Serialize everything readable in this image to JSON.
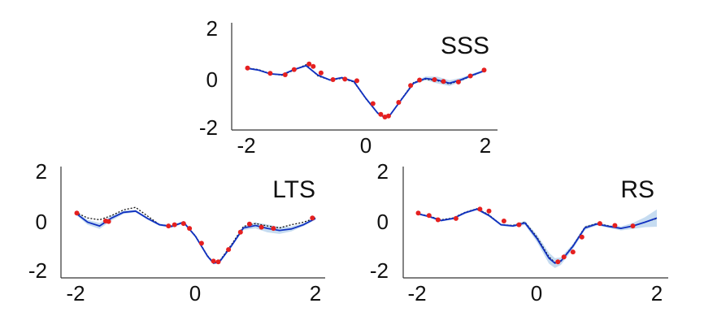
{
  "chart_data": [
    {
      "type": "line",
      "title": "SSS",
      "xlim": [
        -2,
        2
      ],
      "ylim": [
        -2,
        2
      ],
      "xticks": [
        "-2",
        "0",
        "2"
      ],
      "yticks": [
        "2",
        "0",
        "-2"
      ],
      "x": [
        -2.0,
        -1.8,
        -1.6,
        -1.4,
        -1.2,
        -1.0,
        -0.8,
        -0.6,
        -0.4,
        -0.2,
        0.0,
        0.2,
        0.3,
        0.4,
        0.6,
        0.8,
        1.0,
        1.2,
        1.4,
        1.6,
        1.8,
        2.0
      ],
      "series": [
        {
          "role": "true_function",
          "values": [
            0.38,
            0.32,
            0.15,
            0.08,
            0.3,
            0.52,
            0.05,
            -0.12,
            -0.05,
            -0.2,
            -0.9,
            -1.5,
            -1.65,
            -1.6,
            -0.9,
            -0.22,
            -0.08,
            -0.15,
            -0.28,
            -0.12,
            0.08,
            0.3
          ]
        },
        {
          "role": "estimate",
          "values": [
            0.38,
            0.3,
            0.14,
            0.1,
            0.32,
            0.48,
            0.08,
            -0.12,
            -0.02,
            -0.18,
            -0.88,
            -1.5,
            -1.65,
            -1.6,
            -0.92,
            -0.25,
            -0.05,
            -0.12,
            -0.25,
            -0.1,
            0.1,
            0.28
          ]
        }
      ],
      "band_halfwidth": [
        0.04,
        0.04,
        0.04,
        0.04,
        0.04,
        0.04,
        0.04,
        0.04,
        0.04,
        0.04,
        0.05,
        0.05,
        0.05,
        0.05,
        0.05,
        0.05,
        0.08,
        0.14,
        0.12,
        0.08,
        0.06,
        0.05
      ],
      "points": {
        "x": [
          -1.98,
          -1.6,
          -1.35,
          -1.2,
          -0.95,
          -0.88,
          -0.75,
          -0.55,
          -0.35,
          -0.15,
          0.12,
          0.25,
          0.32,
          0.38,
          0.55,
          0.75,
          0.9,
          1.15,
          1.3,
          1.55,
          1.75,
          1.98
        ],
        "y": [
          0.38,
          0.16,
          0.1,
          0.32,
          0.55,
          0.45,
          0.18,
          -0.1,
          -0.08,
          -0.15,
          -1.1,
          -1.55,
          -1.66,
          -1.62,
          -1.05,
          -0.35,
          -0.12,
          -0.1,
          -0.18,
          -0.2,
          0.05,
          0.3
        ]
      }
    },
    {
      "type": "line",
      "title": "LTS",
      "xlim": [
        -2,
        2
      ],
      "ylim": [
        -2,
        2
      ],
      "xticks": [
        "-2",
        "0",
        "2"
      ],
      "yticks": [
        "2",
        "0",
        "-2"
      ],
      "x": [
        -2.0,
        -1.8,
        -1.6,
        -1.4,
        -1.2,
        -1.0,
        -0.8,
        -0.6,
        -0.4,
        -0.2,
        0.0,
        0.2,
        0.3,
        0.4,
        0.6,
        0.8,
        1.0,
        1.2,
        1.4,
        1.6,
        1.8,
        2.0
      ],
      "series": [
        {
          "role": "true_function",
          "values": [
            0.35,
            0.12,
            0.05,
            0.22,
            0.45,
            0.55,
            0.2,
            -0.15,
            -0.2,
            -0.05,
            -0.6,
            -1.4,
            -1.68,
            -1.62,
            -0.95,
            -0.22,
            -0.1,
            -0.2,
            -0.28,
            -0.15,
            -0.05,
            0.12
          ]
        },
        {
          "role": "estimate",
          "values": [
            0.32,
            -0.05,
            -0.2,
            0.12,
            0.35,
            0.4,
            0.1,
            -0.15,
            -0.22,
            -0.05,
            -0.62,
            -1.42,
            -1.7,
            -1.65,
            -1.0,
            -0.28,
            -0.18,
            -0.3,
            -0.38,
            -0.32,
            -0.15,
            0.1
          ]
        }
      ],
      "band_halfwidth": [
        0.06,
        0.1,
        0.12,
        0.1,
        0.06,
        0.05,
        0.05,
        0.05,
        0.05,
        0.05,
        0.05,
        0.05,
        0.05,
        0.05,
        0.05,
        0.08,
        0.12,
        0.16,
        0.14,
        0.1,
        0.06,
        0.05
      ],
      "points": {
        "x": [
          -1.98,
          -1.5,
          -1.45,
          -0.45,
          -0.35,
          -0.2,
          -0.1,
          0.1,
          0.3,
          0.38,
          0.55,
          0.75,
          0.9,
          1.1,
          1.3,
          1.95
        ],
        "y": [
          0.32,
          0.0,
          -0.02,
          -0.2,
          -0.15,
          -0.1,
          -0.3,
          -0.9,
          -1.62,
          -1.65,
          -1.15,
          -0.45,
          -0.12,
          -0.25,
          -0.3,
          0.12
        ]
      }
    },
    {
      "type": "line",
      "title": "RS",
      "xlim": [
        -2,
        2
      ],
      "ylim": [
        -2,
        2
      ],
      "xticks": [
        "-2",
        "0",
        "2"
      ],
      "yticks": [
        "2",
        "0",
        "-2"
      ],
      "x": [
        -2.0,
        -1.8,
        -1.6,
        -1.4,
        -1.2,
        -1.0,
        -0.8,
        -0.6,
        -0.4,
        -0.2,
        0.0,
        0.2,
        0.3,
        0.4,
        0.6,
        0.8,
        1.0,
        1.2,
        1.4,
        1.6,
        1.8,
        2.0
      ],
      "series": [
        {
          "role": "true_function",
          "values": [
            0.3,
            0.2,
            0.05,
            0.12,
            0.35,
            0.5,
            0.25,
            -0.15,
            -0.18,
            -0.05,
            -0.65,
            -1.45,
            -1.68,
            -1.6,
            -1.0,
            -0.25,
            -0.1,
            -0.2,
            -0.3,
            -0.2,
            -0.05,
            0.1
          ]
        },
        {
          "role": "estimate",
          "values": [
            0.3,
            0.18,
            0.02,
            0.1,
            0.33,
            0.48,
            0.22,
            -0.15,
            -0.2,
            -0.08,
            -0.7,
            -1.5,
            -1.7,
            -1.62,
            -1.02,
            -0.28,
            -0.12,
            -0.22,
            -0.3,
            -0.2,
            -0.05,
            0.12
          ]
        }
      ],
      "band_halfwidth": [
        0.04,
        0.04,
        0.04,
        0.04,
        0.04,
        0.04,
        0.05,
        0.05,
        0.05,
        0.08,
        0.15,
        0.22,
        0.2,
        0.15,
        0.1,
        0.08,
        0.06,
        0.06,
        0.08,
        0.12,
        0.2,
        0.35
      ],
      "points": {
        "x": [
          -1.98,
          -1.8,
          -1.65,
          -1.35,
          -0.95,
          -0.8,
          -0.55,
          -0.3,
          0.35,
          0.45,
          0.6,
          0.75,
          1.05,
          1.3,
          1.6
        ],
        "y": [
          0.32,
          0.22,
          0.05,
          0.1,
          0.48,
          0.4,
          0.0,
          -0.15,
          -1.65,
          -1.45,
          -1.25,
          -0.65,
          -0.1,
          -0.18,
          -0.2
        ]
      }
    }
  ],
  "colors": {
    "estimate": "#1030c0",
    "true_function": "#111111",
    "band": "#bcd6ee",
    "points": "#e52020"
  }
}
